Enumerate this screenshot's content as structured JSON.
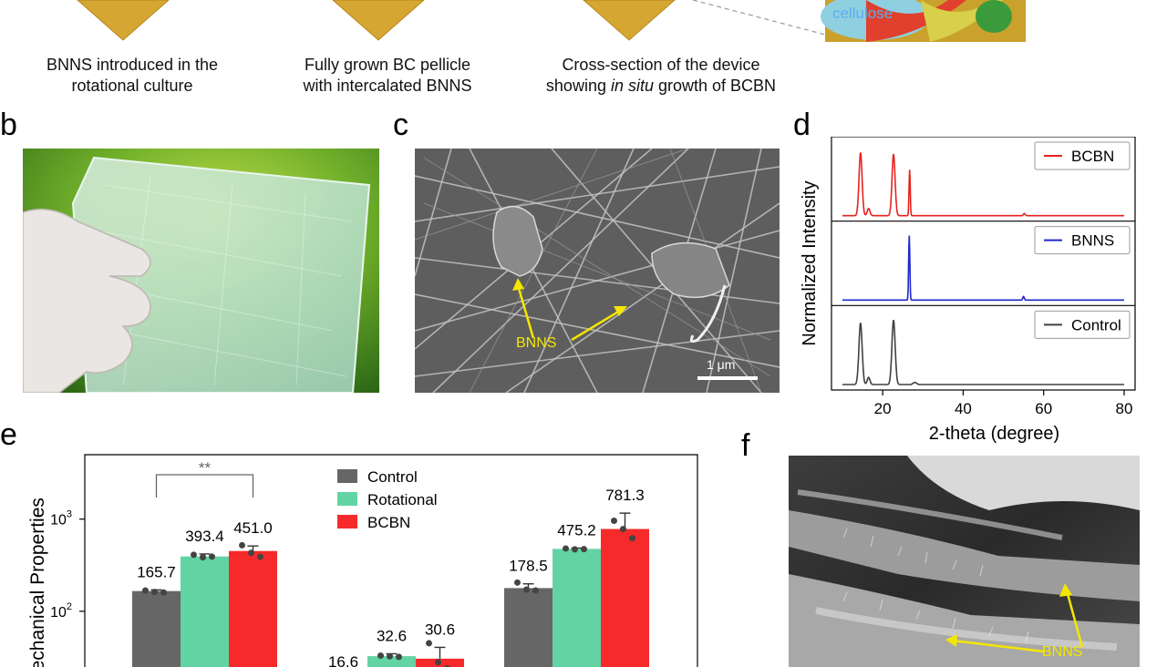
{
  "panel_a": {
    "captions": [
      {
        "lines": [
          "BNNS introduced in the",
          "rotational culture"
        ]
      },
      {
        "lines": [
          "Fully grown BC pellicle",
          "with intercalated BNNS"
        ]
      },
      {
        "before": "Cross-section of the device",
        "line2_pre": "showing ",
        "line2_em": "in situ",
        "line2_post": " growth of BCBN"
      }
    ],
    "inset_label": "cellulose"
  },
  "panel_letters": {
    "b": "b",
    "c": "c",
    "d": "d",
    "e": "e",
    "f": "f"
  },
  "panel_c": {
    "label": "BNNS",
    "scale_bar": "1 μm"
  },
  "panel_f": {
    "label": "BNNS"
  },
  "panel_d": {
    "chart_data": {
      "type": "line",
      "xlabel": "2-theta (degree)",
      "ylabel": "Normalized Intensity",
      "xlim": [
        10,
        80
      ],
      "x_ticks": [
        "20",
        "40",
        "60",
        "80"
      ],
      "series": [
        {
          "name": "BCBN",
          "color": "#e8231f",
          "peaks": [
            {
              "x": 14.5,
              "h": 0.88,
              "w": 0.9
            },
            {
              "x": 16.5,
              "h": 0.1,
              "w": 0.8
            },
            {
              "x": 22.7,
              "h": 0.86,
              "w": 0.9
            },
            {
              "x": 26.7,
              "h": 0.64,
              "w": 0.35
            },
            {
              "x": 55.2,
              "h": 0.03,
              "w": 0.5
            }
          ]
        },
        {
          "name": "BNNS",
          "color": "#1f28c8",
          "peaks": [
            {
              "x": 26.6,
              "h": 0.9,
              "w": 0.35
            },
            {
              "x": 55.0,
              "h": 0.05,
              "w": 0.45
            }
          ]
        },
        {
          "name": "Control",
          "color": "#404040",
          "peaks": [
            {
              "x": 14.5,
              "h": 0.86,
              "w": 0.95
            },
            {
              "x": 16.5,
              "h": 0.1,
              "w": 0.8
            },
            {
              "x": 22.7,
              "h": 0.9,
              "w": 0.95
            },
            {
              "x": 28.0,
              "h": 0.03,
              "w": 1.0
            }
          ]
        }
      ]
    }
  },
  "panel_e": {
    "chart_data": {
      "type": "bar",
      "ylabel": "Mechanical Properties",
      "yscale": "log",
      "y_ticks": [
        {
          "exp": "2"
        },
        {
          "exp": "3"
        }
      ],
      "significance": "**",
      "legend": [
        {
          "name": "Control",
          "color": "#666666"
        },
        {
          "name": "Rotational",
          "color": "#62d4a3"
        },
        {
          "name": "BCBN",
          "color": "#f62a2a"
        }
      ],
      "groups": [
        {
          "values": [
            165.7,
            393.4,
            451.0
          ],
          "labels": [
            "165.7",
            "393.4",
            "451.0"
          ],
          "errors": [
            5,
            25,
            60
          ],
          "points": [
            [
              168,
              162,
              160
            ],
            [
              410,
              385,
              392
            ],
            [
              520,
              430,
              390
            ]
          ]
        },
        {
          "values": [
            16.6,
            32.6,
            30.6
          ],
          "labels": [
            "16.6",
            "32.6",
            "30.6"
          ],
          "errors": [
            1.5,
            2,
            10
          ],
          "points": [
            [
              18,
              17,
              16.5
            ],
            [
              33,
              32.5,
              32
            ],
            [
              45,
              28,
              24
            ]
          ]
        },
        {
          "values": [
            178.5,
            475.2,
            781.3
          ],
          "labels": [
            "178.5",
            "475.2",
            "781.3"
          ],
          "errors": [
            20,
            10,
            380
          ],
          "points": [
            [
              205,
              172,
              168
            ],
            [
              480,
              470,
              472
            ],
            [
              960,
              780,
              620
            ]
          ]
        }
      ]
    }
  }
}
